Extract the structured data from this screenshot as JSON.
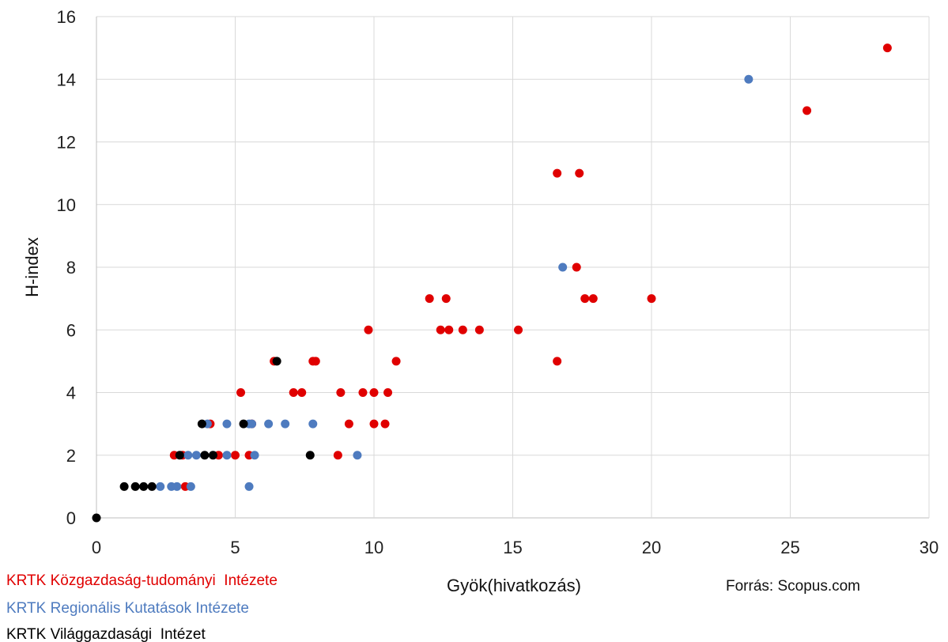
{
  "chart_data": {
    "type": "scatter",
    "title": "",
    "xlabel": "Gyök(hivatkozás)",
    "ylabel": "H-index",
    "xlim": [
      0,
      30
    ],
    "ylim": [
      0,
      16
    ],
    "xticks": [
      "0",
      "5",
      "10",
      "15",
      "20",
      "25",
      "30"
    ],
    "yticks": [
      "0",
      "2",
      "4",
      "6",
      "8",
      "10",
      "12",
      "14",
      "16"
    ],
    "grid": true,
    "source": "Forrás: Scopus.com",
    "legend_position": "bottom-left",
    "series": [
      {
        "name": "KRTK Közgazdaság-tudományi  Intézete",
        "color": "#e00000",
        "points": [
          [
            28.5,
            15
          ],
          [
            25.6,
            13
          ],
          [
            16.6,
            11
          ],
          [
            17.4,
            11
          ],
          [
            17.3,
            8
          ],
          [
            12.0,
            7
          ],
          [
            12.6,
            7
          ],
          [
            17.6,
            7
          ],
          [
            17.9,
            7
          ],
          [
            20.0,
            7
          ],
          [
            9.8,
            6
          ],
          [
            12.4,
            6
          ],
          [
            12.7,
            6
          ],
          [
            13.2,
            6
          ],
          [
            13.8,
            6
          ],
          [
            15.2,
            6
          ],
          [
            6.4,
            5
          ],
          [
            7.8,
            5
          ],
          [
            7.9,
            5
          ],
          [
            10.8,
            5
          ],
          [
            16.6,
            5
          ],
          [
            5.2,
            4
          ],
          [
            7.1,
            4
          ],
          [
            7.4,
            4
          ],
          [
            8.8,
            4
          ],
          [
            9.6,
            4
          ],
          [
            10.0,
            4
          ],
          [
            10.5,
            4
          ],
          [
            4.1,
            3
          ],
          [
            5.6,
            3
          ],
          [
            9.1,
            3
          ],
          [
            10.0,
            3
          ],
          [
            10.4,
            3
          ],
          [
            2.8,
            2
          ],
          [
            3.1,
            2
          ],
          [
            4.4,
            2
          ],
          [
            5.0,
            2
          ],
          [
            5.5,
            2
          ],
          [
            8.7,
            2
          ],
          [
            3.2,
            1
          ]
        ]
      },
      {
        "name": "KRTK Regionális Kutatások Intézete",
        "color": "#4e7bbf",
        "points": [
          [
            23.5,
            14
          ],
          [
            16.8,
            8
          ],
          [
            4.0,
            3
          ],
          [
            4.7,
            3
          ],
          [
            5.5,
            3
          ],
          [
            5.6,
            3
          ],
          [
            6.2,
            3
          ],
          [
            6.8,
            3
          ],
          [
            7.8,
            3
          ],
          [
            3.3,
            2
          ],
          [
            3.6,
            2
          ],
          [
            4.7,
            2
          ],
          [
            5.7,
            2
          ],
          [
            9.4,
            2
          ],
          [
            2.3,
            1
          ],
          [
            2.7,
            1
          ],
          [
            2.9,
            1
          ],
          [
            3.4,
            1
          ],
          [
            5.5,
            1
          ]
        ]
      },
      {
        "name": "KRTK Világgazdasági  Intézet",
        "color": "#000000",
        "points": [
          [
            0.0,
            0
          ],
          [
            1.0,
            1
          ],
          [
            1.4,
            1
          ],
          [
            1.7,
            1
          ],
          [
            2.0,
            1
          ],
          [
            3.0,
            2
          ],
          [
            3.9,
            2
          ],
          [
            4.2,
            2
          ],
          [
            7.7,
            2
          ],
          [
            3.8,
            3
          ],
          [
            5.3,
            3
          ],
          [
            6.5,
            5
          ]
        ]
      }
    ]
  }
}
